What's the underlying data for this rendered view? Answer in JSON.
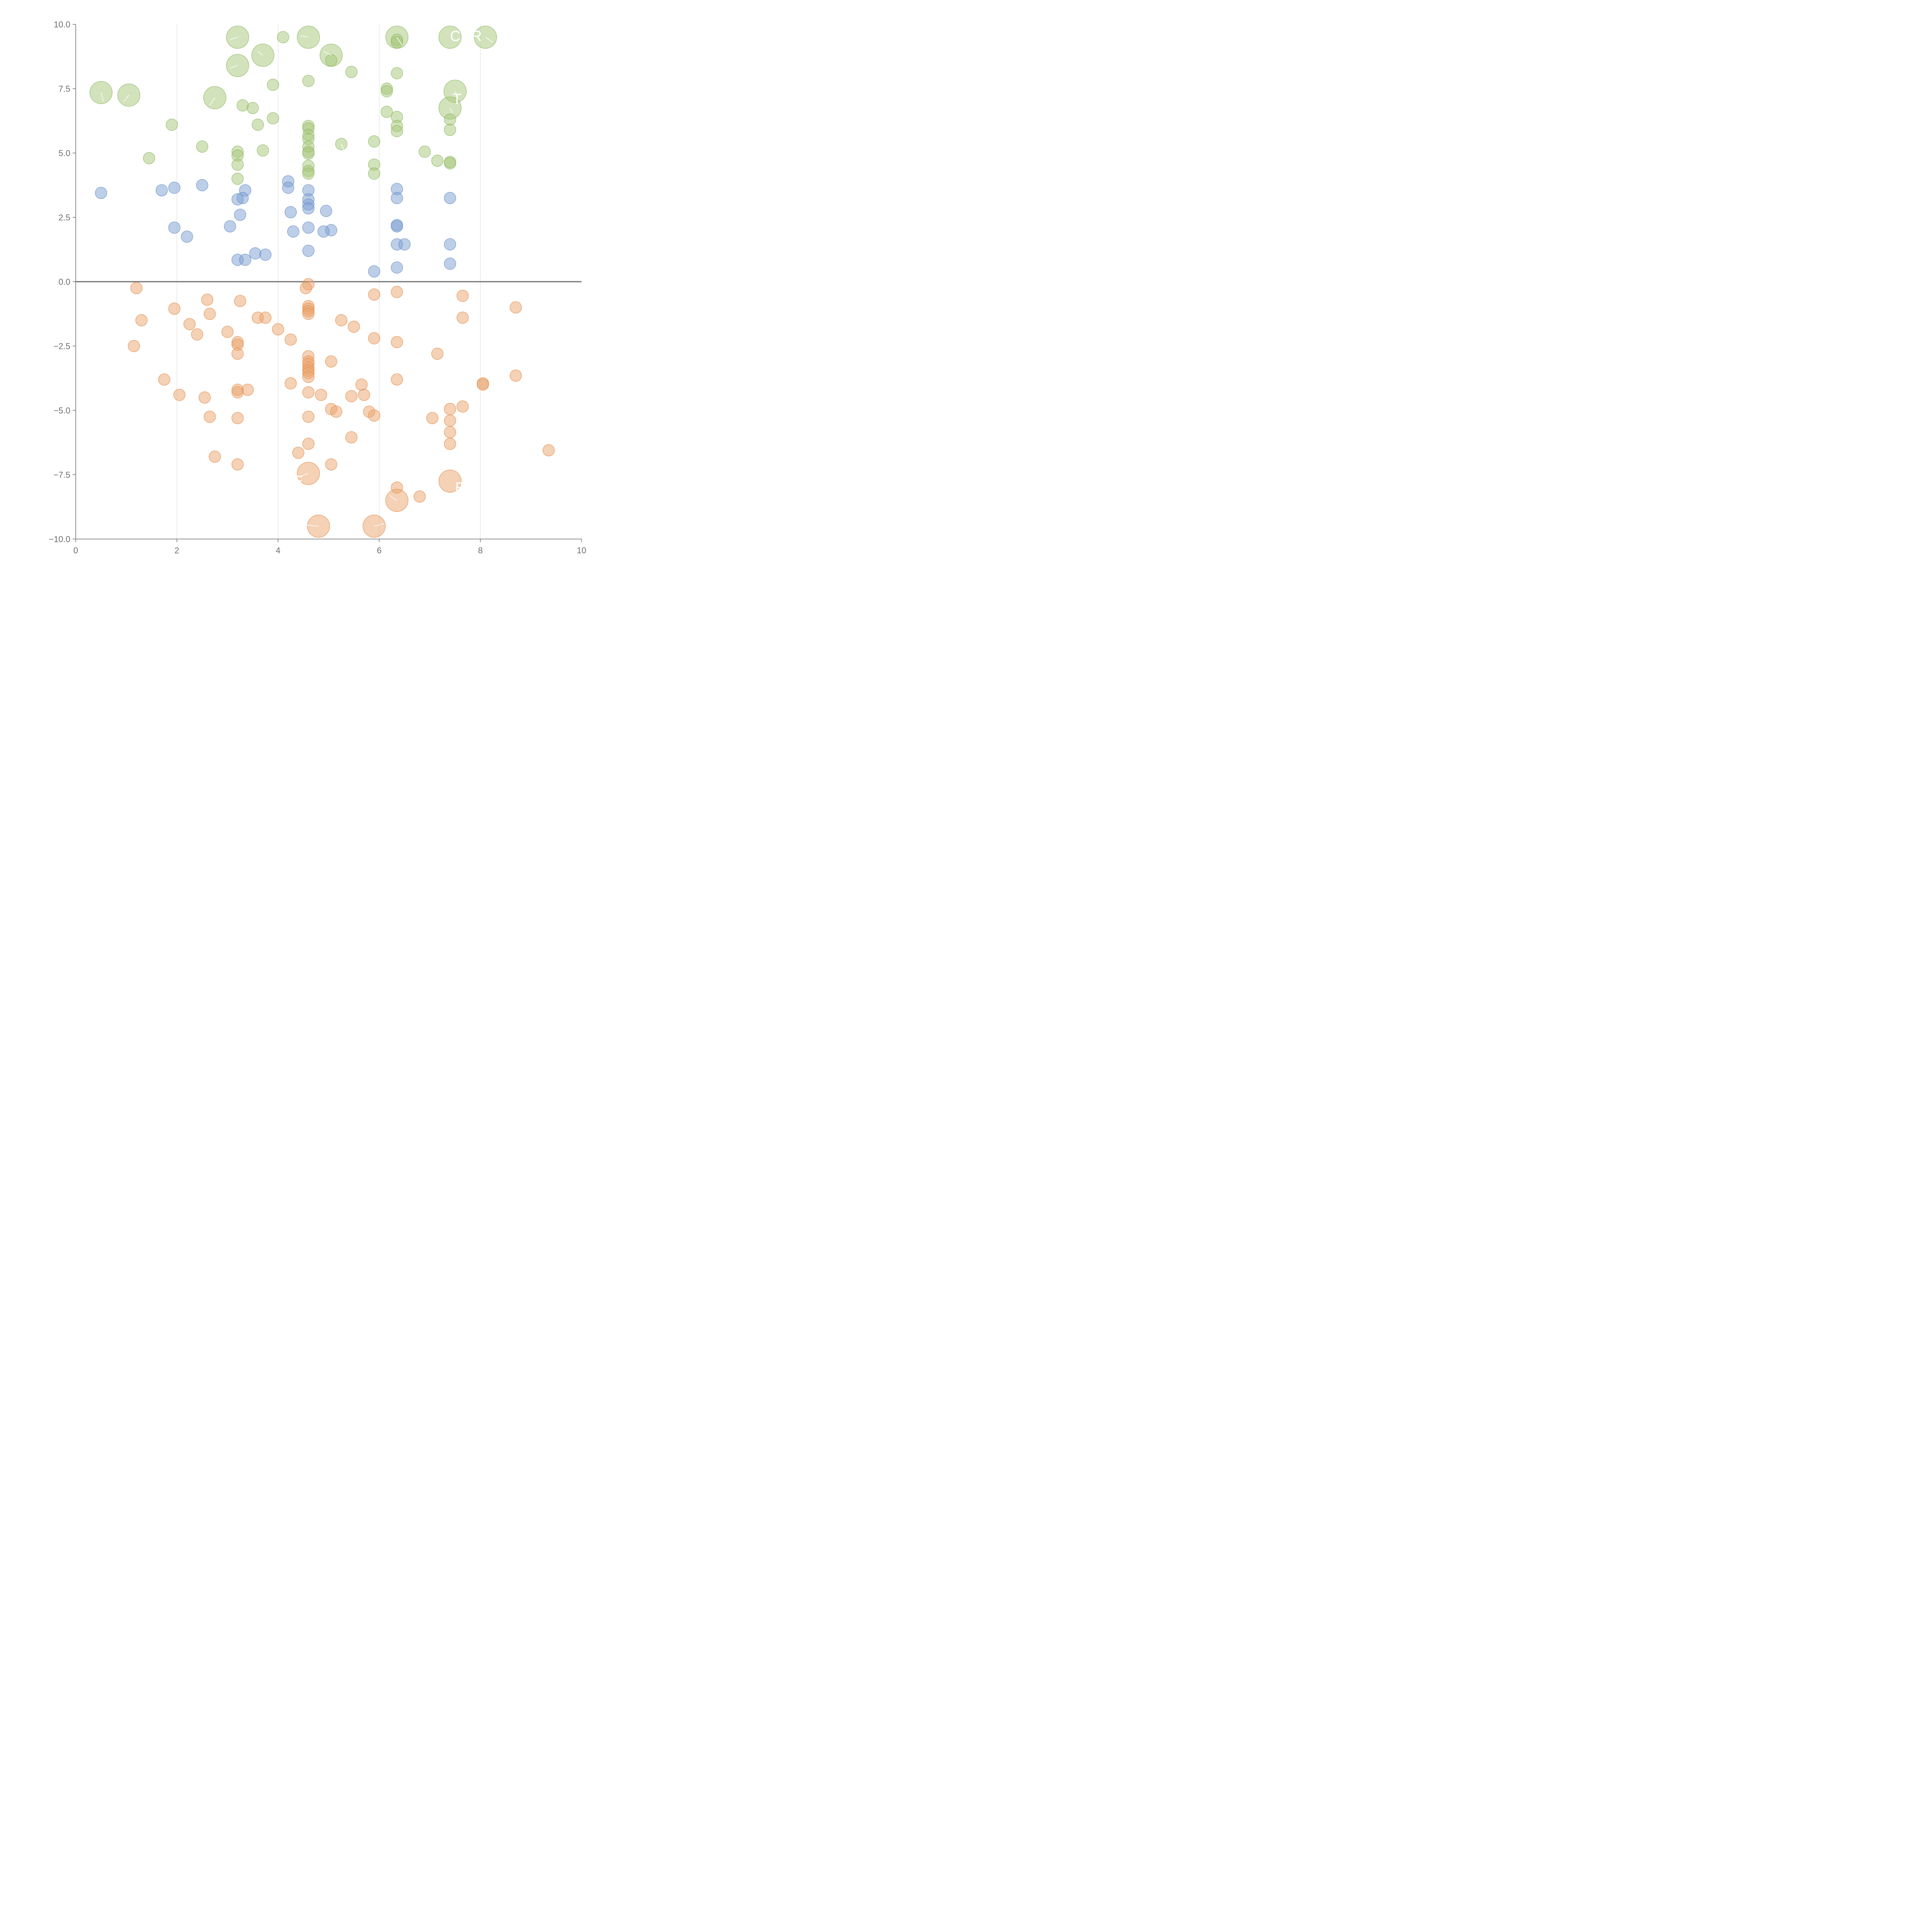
{
  "chart_data": {
    "type": "scatter",
    "title": "",
    "xlabel": "",
    "ylabel": "",
    "xlim": [
      0,
      10
    ],
    "ylim": [
      -10,
      10
    ],
    "x_ticks": [
      0,
      2,
      4,
      6,
      8,
      10
    ],
    "y_ticks": [
      -10,
      -7.5,
      -5,
      -2.5,
      0,
      2.5,
      5,
      7.5,
      10
    ],
    "x_tick_labels": [
      "0",
      "2",
      "4",
      "6",
      "8",
      "10"
    ],
    "y_tick_labels": [
      "−10.0",
      "−7.5",
      "−5.0",
      "−2.5",
      "0.0",
      "2.5",
      "5.0",
      "7.5",
      "10.0"
    ],
    "grid": "vertical",
    "zero_line": true,
    "colors": {
      "green": "#a5c77a",
      "green_edge": "#8fb562",
      "blue": "#7b9fd2",
      "blue_edge": "#6a8dc4",
      "orange": "#eba36b",
      "orange_edge": "#e08e4f"
    },
    "series": [
      {
        "color": "green",
        "points": [
          {
            "x": 3.2,
            "y": 9.5,
            "s": 2
          },
          {
            "x": 4.1,
            "y": 9.5,
            "s": 1
          },
          {
            "x": 4.6,
            "y": 9.5,
            "s": 2
          },
          {
            "x": 6.35,
            "y": 9.5,
            "s": 2
          },
          {
            "x": 6.35,
            "y": 9.4,
            "s": 1
          },
          {
            "x": 6.35,
            "y": 9.3,
            "s": 1
          },
          {
            "x": 7.4,
            "y": 9.5,
            "s": 2
          },
          {
            "x": 8.1,
            "y": 9.5,
            "s": 2
          },
          {
            "x": 3.7,
            "y": 8.8,
            "s": 2
          },
          {
            "x": 5.05,
            "y": 8.8,
            "s": 2
          },
          {
            "x": 5.05,
            "y": 8.6,
            "s": 1
          },
          {
            "x": 3.2,
            "y": 8.4,
            "s": 2
          },
          {
            "x": 5.45,
            "y": 8.15,
            "s": 1
          },
          {
            "x": 6.35,
            "y": 8.1,
            "s": 1
          },
          {
            "x": 4.6,
            "y": 7.8,
            "s": 1
          },
          {
            "x": 3.9,
            "y": 7.65,
            "s": 1
          },
          {
            "x": 6.15,
            "y": 7.5,
            "s": 1
          },
          {
            "x": 6.15,
            "y": 7.4,
            "s": 1
          },
          {
            "x": 7.5,
            "y": 7.4,
            "s": 2
          },
          {
            "x": 0.5,
            "y": 7.35,
            "s": 2
          },
          {
            "x": 1.05,
            "y": 7.25,
            "s": 2
          },
          {
            "x": 2.75,
            "y": 7.15,
            "s": 2
          },
          {
            "x": 3.3,
            "y": 6.85,
            "s": 1
          },
          {
            "x": 3.5,
            "y": 6.75,
            "s": 1
          },
          {
            "x": 7.4,
            "y": 6.75,
            "s": 2
          },
          {
            "x": 6.15,
            "y": 6.6,
            "s": 1
          },
          {
            "x": 6.35,
            "y": 6.4,
            "s": 1
          },
          {
            "x": 3.9,
            "y": 6.35,
            "s": 1
          },
          {
            "x": 7.4,
            "y": 6.3,
            "s": 1
          },
          {
            "x": 1.9,
            "y": 6.1,
            "s": 1
          },
          {
            "x": 3.6,
            "y": 6.1,
            "s": 1
          },
          {
            "x": 4.6,
            "y": 6.05,
            "s": 1
          },
          {
            "x": 4.6,
            "y": 5.95,
            "s": 1
          },
          {
            "x": 6.35,
            "y": 6.05,
            "s": 1
          },
          {
            "x": 7.4,
            "y": 5.9,
            "s": 1
          },
          {
            "x": 6.35,
            "y": 5.85,
            "s": 1
          },
          {
            "x": 4.6,
            "y": 5.7,
            "s": 1
          },
          {
            "x": 4.6,
            "y": 5.55,
            "s": 1
          },
          {
            "x": 5.9,
            "y": 5.45,
            "s": 1
          },
          {
            "x": 5.25,
            "y": 5.35,
            "s": 1
          },
          {
            "x": 2.5,
            "y": 5.25,
            "s": 1
          },
          {
            "x": 4.6,
            "y": 5.25,
            "s": 1
          },
          {
            "x": 3.7,
            "y": 5.1,
            "s": 1
          },
          {
            "x": 6.9,
            "y": 5.05,
            "s": 1
          },
          {
            "x": 3.2,
            "y": 5.05,
            "s": 1
          },
          {
            "x": 4.6,
            "y": 5.05,
            "s": 1
          },
          {
            "x": 4.6,
            "y": 4.98,
            "s": 1
          },
          {
            "x": 3.2,
            "y": 4.9,
            "s": 1
          },
          {
            "x": 1.45,
            "y": 4.8,
            "s": 1
          },
          {
            "x": 7.15,
            "y": 4.7,
            "s": 1
          },
          {
            "x": 7.4,
            "y": 4.65,
            "s": 1
          },
          {
            "x": 7.4,
            "y": 4.6,
            "s": 1
          },
          {
            "x": 3.2,
            "y": 4.55,
            "s": 1
          },
          {
            "x": 5.9,
            "y": 4.55,
            "s": 1
          },
          {
            "x": 4.6,
            "y": 4.5,
            "s": 1
          },
          {
            "x": 4.6,
            "y": 4.3,
            "s": 1
          },
          {
            "x": 5.9,
            "y": 4.2,
            "s": 1
          },
          {
            "x": 4.6,
            "y": 4.2,
            "s": 1
          },
          {
            "x": 3.2,
            "y": 4.0,
            "s": 1
          }
        ]
      },
      {
        "color": "blue",
        "points": [
          {
            "x": 4.2,
            "y": 3.9,
            "s": 1
          },
          {
            "x": 2.5,
            "y": 3.75,
            "s": 1
          },
          {
            "x": 1.95,
            "y": 3.65,
            "s": 1
          },
          {
            "x": 4.2,
            "y": 3.65,
            "s": 1
          },
          {
            "x": 6.35,
            "y": 3.6,
            "s": 1
          },
          {
            "x": 1.7,
            "y": 3.55,
            "s": 1
          },
          {
            "x": 3.35,
            "y": 3.55,
            "s": 1
          },
          {
            "x": 4.6,
            "y": 3.55,
            "s": 1
          },
          {
            "x": 0.5,
            "y": 3.45,
            "s": 1
          },
          {
            "x": 3.3,
            "y": 3.25,
            "s": 1
          },
          {
            "x": 6.35,
            "y": 3.25,
            "s": 1
          },
          {
            "x": 7.4,
            "y": 3.25,
            "s": 1
          },
          {
            "x": 3.2,
            "y": 3.2,
            "s": 1
          },
          {
            "x": 4.6,
            "y": 3.2,
            "s": 1
          },
          {
            "x": 4.6,
            "y": 3.0,
            "s": 1
          },
          {
            "x": 4.6,
            "y": 2.85,
            "s": 1
          },
          {
            "x": 4.95,
            "y": 2.75,
            "s": 1
          },
          {
            "x": 4.25,
            "y": 2.7,
            "s": 1
          },
          {
            "x": 3.25,
            "y": 2.6,
            "s": 1
          },
          {
            "x": 6.35,
            "y": 2.2,
            "s": 1
          },
          {
            "x": 6.35,
            "y": 2.15,
            "s": 1
          },
          {
            "x": 3.05,
            "y": 2.15,
            "s": 1
          },
          {
            "x": 1.95,
            "y": 2.1,
            "s": 1
          },
          {
            "x": 4.6,
            "y": 2.1,
            "s": 1
          },
          {
            "x": 5.05,
            "y": 2.0,
            "s": 1
          },
          {
            "x": 4.3,
            "y": 1.95,
            "s": 1
          },
          {
            "x": 4.9,
            "y": 1.95,
            "s": 1
          },
          {
            "x": 2.2,
            "y": 1.75,
            "s": 1
          },
          {
            "x": 6.35,
            "y": 1.45,
            "s": 1
          },
          {
            "x": 6.5,
            "y": 1.45,
            "s": 1
          },
          {
            "x": 7.4,
            "y": 1.45,
            "s": 1
          },
          {
            "x": 4.6,
            "y": 1.2,
            "s": 1
          },
          {
            "x": 3.55,
            "y": 1.1,
            "s": 1
          },
          {
            "x": 3.75,
            "y": 1.05,
            "s": 1
          },
          {
            "x": 3.2,
            "y": 0.85,
            "s": 1
          },
          {
            "x": 3.35,
            "y": 0.85,
            "s": 1
          },
          {
            "x": 7.4,
            "y": 0.7,
            "s": 1
          },
          {
            "x": 6.35,
            "y": 0.55,
            "s": 1
          },
          {
            "x": 5.9,
            "y": 0.4,
            "s": 1
          }
        ]
      },
      {
        "color": "orange",
        "points": [
          {
            "x": 4.6,
            "y": -0.1,
            "s": 1
          },
          {
            "x": 4.55,
            "y": -0.25,
            "s": 1
          },
          {
            "x": 1.2,
            "y": -0.25,
            "s": 1
          },
          {
            "x": 6.35,
            "y": -0.4,
            "s": 1
          },
          {
            "x": 5.9,
            "y": -0.5,
            "s": 1
          },
          {
            "x": 7.65,
            "y": -0.55,
            "s": 1
          },
          {
            "x": 2.6,
            "y": -0.7,
            "s": 1
          },
          {
            "x": 3.25,
            "y": -0.75,
            "s": 1
          },
          {
            "x": 8.7,
            "y": -1.0,
            "s": 1
          },
          {
            "x": 4.6,
            "y": -0.95,
            "s": 1
          },
          {
            "x": 4.6,
            "y": -1.05,
            "s": 1
          },
          {
            "x": 4.6,
            "y": -1.15,
            "s": 1
          },
          {
            "x": 4.6,
            "y": -1.25,
            "s": 1
          },
          {
            "x": 1.95,
            "y": -1.05,
            "s": 1
          },
          {
            "x": 2.65,
            "y": -1.25,
            "s": 1
          },
          {
            "x": 3.6,
            "y": -1.4,
            "s": 1
          },
          {
            "x": 3.75,
            "y": -1.4,
            "s": 1
          },
          {
            "x": 7.65,
            "y": -1.4,
            "s": 1
          },
          {
            "x": 1.3,
            "y": -1.5,
            "s": 1
          },
          {
            "x": 5.25,
            "y": -1.5,
            "s": 1
          },
          {
            "x": 2.25,
            "y": -1.65,
            "s": 1
          },
          {
            "x": 5.5,
            "y": -1.75,
            "s": 1
          },
          {
            "x": 4.0,
            "y": -1.85,
            "s": 1
          },
          {
            "x": 3.0,
            "y": -1.95,
            "s": 1
          },
          {
            "x": 2.4,
            "y": -2.05,
            "s": 1
          },
          {
            "x": 5.9,
            "y": -2.2,
            "s": 1
          },
          {
            "x": 4.25,
            "y": -2.25,
            "s": 1
          },
          {
            "x": 3.2,
            "y": -2.35,
            "s": 1
          },
          {
            "x": 6.35,
            "y": -2.35,
            "s": 1
          },
          {
            "x": 3.2,
            "y": -2.45,
            "s": 1
          },
          {
            "x": 1.15,
            "y": -2.5,
            "s": 1
          },
          {
            "x": 3.2,
            "y": -2.8,
            "s": 1
          },
          {
            "x": 7.15,
            "y": -2.8,
            "s": 1
          },
          {
            "x": 4.6,
            "y": -2.9,
            "s": 1
          },
          {
            "x": 5.05,
            "y": -3.1,
            "s": 1
          },
          {
            "x": 4.6,
            "y": -3.1,
            "s": 1
          },
          {
            "x": 4.6,
            "y": -3.2,
            "s": 1
          },
          {
            "x": 4.6,
            "y": -3.35,
            "s": 1
          },
          {
            "x": 4.6,
            "y": -3.45,
            "s": 1
          },
          {
            "x": 4.6,
            "y": -3.55,
            "s": 1
          },
          {
            "x": 8.7,
            "y": -3.65,
            "s": 1
          },
          {
            "x": 4.6,
            "y": -3.7,
            "s": 1
          },
          {
            "x": 1.75,
            "y": -3.8,
            "s": 1
          },
          {
            "x": 6.35,
            "y": -3.8,
            "s": 1
          },
          {
            "x": 4.25,
            "y": -3.95,
            "s": 1
          },
          {
            "x": 8.05,
            "y": -3.95,
            "s": 1
          },
          {
            "x": 8.05,
            "y": -4.0,
            "s": 1
          },
          {
            "x": 5.65,
            "y": -4.0,
            "s": 1
          },
          {
            "x": 3.2,
            "y": -4.2,
            "s": 1
          },
          {
            "x": 3.4,
            "y": -4.2,
            "s": 1
          },
          {
            "x": 3.2,
            "y": -4.3,
            "s": 1
          },
          {
            "x": 4.6,
            "y": -4.3,
            "s": 1
          },
          {
            "x": 5.7,
            "y": -4.4,
            "s": 1
          },
          {
            "x": 2.05,
            "y": -4.4,
            "s": 1
          },
          {
            "x": 4.85,
            "y": -4.4,
            "s": 1
          },
          {
            "x": 5.45,
            "y": -4.45,
            "s": 1
          },
          {
            "x": 2.55,
            "y": -4.5,
            "s": 1
          },
          {
            "x": 7.65,
            "y": -4.85,
            "s": 1
          },
          {
            "x": 5.05,
            "y": -4.95,
            "s": 1
          },
          {
            "x": 7.4,
            "y": -4.95,
            "s": 1
          },
          {
            "x": 5.8,
            "y": -5.05,
            "s": 1
          },
          {
            "x": 5.15,
            "y": -5.05,
            "s": 1
          },
          {
            "x": 5.9,
            "y": -5.2,
            "s": 1
          },
          {
            "x": 2.65,
            "y": -5.25,
            "s": 1
          },
          {
            "x": 4.6,
            "y": -5.25,
            "s": 1
          },
          {
            "x": 7.05,
            "y": -5.3,
            "s": 1
          },
          {
            "x": 3.2,
            "y": -5.3,
            "s": 1
          },
          {
            "x": 7.4,
            "y": -5.4,
            "s": 1
          },
          {
            "x": 7.4,
            "y": -5.85,
            "s": 1
          },
          {
            "x": 5.45,
            "y": -6.05,
            "s": 1
          },
          {
            "x": 7.4,
            "y": -6.3,
            "s": 1
          },
          {
            "x": 4.6,
            "y": -6.3,
            "s": 1
          },
          {
            "x": 9.35,
            "y": -6.55,
            "s": 1
          },
          {
            "x": 4.4,
            "y": -6.65,
            "s": 1
          },
          {
            "x": 2.75,
            "y": -6.8,
            "s": 1
          },
          {
            "x": 3.2,
            "y": -7.1,
            "s": 1
          },
          {
            "x": 5.05,
            "y": -7.1,
            "s": 1
          },
          {
            "x": 4.6,
            "y": -7.45,
            "s": 2
          },
          {
            "x": 7.4,
            "y": -7.75,
            "s": 2
          },
          {
            "x": 6.35,
            "y": -8.0,
            "s": 1
          },
          {
            "x": 6.8,
            "y": -8.35,
            "s": 1
          },
          {
            "x": 6.35,
            "y": -8.5,
            "s": 2
          },
          {
            "x": 4.8,
            "y": -9.5,
            "s": 2
          },
          {
            "x": 5.9,
            "y": -9.5,
            "s": 2
          }
        ]
      }
    ],
    "labels": [
      {
        "text": "CHR",
        "x": 7.4,
        "y": 9.55
      },
      {
        "text": "T",
        "x": 7.45,
        "y": 7.1
      },
      {
        "text": "E",
        "x": 4.3,
        "y": -7.75
      },
      {
        "text": "B",
        "x": 7.5,
        "y": -8.0
      }
    ],
    "leader_lines": [
      {
        "x1": 3.2,
        "y1": 9.5,
        "x2": 3.05,
        "y2": 9.4
      },
      {
        "x1": 3.2,
        "y1": 8.4,
        "x2": 3.05,
        "y2": 8.3
      },
      {
        "x1": 3.7,
        "y1": 8.8,
        "x2": 3.6,
        "y2": 8.95
      },
      {
        "x1": 5.05,
        "y1": 8.8,
        "x2": 4.9,
        "y2": 8.95
      },
      {
        "x1": 4.6,
        "y1": 9.5,
        "x2": 4.45,
        "y2": 9.55
      },
      {
        "x1": 6.35,
        "y1": 9.5,
        "x2": 6.45,
        "y2": 9.2
      },
      {
        "x1": 8.1,
        "y1": 9.5,
        "x2": 8.25,
        "y2": 9.3
      },
      {
        "x1": 0.5,
        "y1": 7.35,
        "x2": 0.55,
        "y2": 7.0
      },
      {
        "x1": 1.05,
        "y1": 7.25,
        "x2": 0.95,
        "y2": 7.0
      },
      {
        "x1": 2.75,
        "y1": 7.15,
        "x2": 2.65,
        "y2": 6.85
      },
      {
        "x1": 7.5,
        "y1": 7.4,
        "x2": 7.55,
        "y2": 7.15
      },
      {
        "x1": 7.4,
        "y1": 6.75,
        "x2": 7.45,
        "y2": 6.55
      },
      {
        "x1": 5.25,
        "y1": 5.35,
        "x2": 5.3,
        "y2": 5.1
      },
      {
        "x1": 4.6,
        "y1": -7.45,
        "x2": 4.45,
        "y2": -7.55
      },
      {
        "x1": 6.35,
        "y1": -8.5,
        "x2": 6.2,
        "y2": -8.3
      },
      {
        "x1": 5.9,
        "y1": -9.5,
        "x2": 6.1,
        "y2": -9.4
      },
      {
        "x1": 4.8,
        "y1": -9.5,
        "x2": 4.55,
        "y2": -9.45
      }
    ]
  }
}
